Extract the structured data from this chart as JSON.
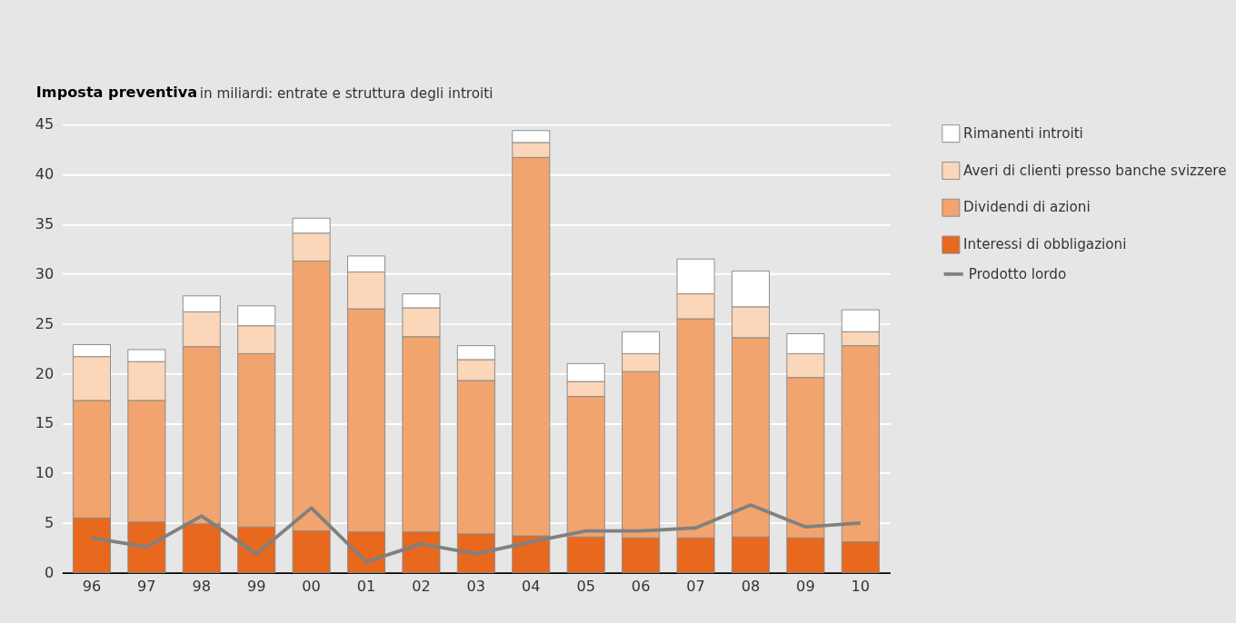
{
  "chart_data": {
    "type": "bar",
    "title": "Imposta preventiva",
    "subtitle": "in miliardi: entrate e struttura degli introiti",
    "categories": [
      "96",
      "97",
      "98",
      "99",
      "00",
      "01",
      "02",
      "03",
      "04",
      "05",
      "06",
      "07",
      "08",
      "09",
      "10"
    ],
    "stacked": true,
    "series": [
      {
        "name": "Interessi di obbligazioni",
        "color": "#e8681e",
        "values": [
          5.5,
          5.1,
          4.9,
          4.6,
          4.2,
          4.1,
          4.1,
          3.9,
          3.7,
          3.6,
          3.5,
          3.5,
          3.6,
          3.5,
          3.1
        ]
      },
      {
        "name": "Dividendi di azioni",
        "color": "#f2a46e",
        "values": [
          11.8,
          12.2,
          17.8,
          17.4,
          27.1,
          22.4,
          19.6,
          15.4,
          38.0,
          14.1,
          16.7,
          22.0,
          20.0,
          16.1,
          19.7
        ]
      },
      {
        "name": "Averi di clienti presso banche svizzere",
        "color": "#fbd6b8",
        "values": [
          4.4,
          3.9,
          3.5,
          2.8,
          2.8,
          3.7,
          2.9,
          2.1,
          1.5,
          1.5,
          1.8,
          2.5,
          3.1,
          2.4,
          1.4
        ]
      },
      {
        "name": "Rimanenti introiti",
        "color": "#ffffff",
        "values": [
          1.2,
          1.2,
          1.6,
          2.0,
          1.5,
          1.6,
          1.4,
          1.4,
          1.2,
          1.8,
          2.2,
          3.5,
          3.6,
          2.0,
          2.2
        ]
      },
      {
        "name": "Prodotto lordo",
        "type": "line",
        "color": "#808080",
        "values": [
          3.5,
          2.6,
          5.7,
          1.9,
          6.5,
          1.1,
          2.9,
          1.9,
          3.1,
          4.2,
          4.2,
          4.5,
          6.8,
          4.6,
          5.0
        ]
      }
    ],
    "ylim": [
      0,
      45
    ],
    "yticks": [
      0,
      5,
      10,
      15,
      20,
      25,
      30,
      35,
      40,
      45
    ],
    "grid": "y",
    "legend": "right"
  }
}
